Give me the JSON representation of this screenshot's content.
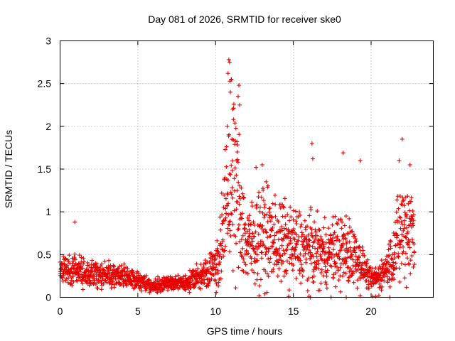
{
  "chart_data": {
    "type": "scatter",
    "title": "Day 081 of 2026, SRMTID for receiver ske0",
    "xlabel": "GPS time / hours",
    "ylabel": "SRMTID / TECUs",
    "xlim": [
      0,
      24
    ],
    "ylim": [
      0,
      3
    ],
    "x_ticks": [
      0,
      5,
      10,
      15,
      20
    ],
    "x_tick_labels": [
      "0",
      "5",
      "10",
      "15",
      "20"
    ],
    "y_ticks": [
      0,
      0.5,
      1,
      1.5,
      2,
      2.5,
      3
    ],
    "y_tick_labels": [
      "0",
      "0.5",
      "1",
      "1.5",
      "2",
      "2.5",
      "3"
    ],
    "grid": true,
    "marker": "+",
    "color": "#e60000",
    "series": [
      {
        "name": "SRMTID",
        "profile": {
          "x": [
            0,
            1,
            2,
            3,
            4,
            5,
            6,
            7,
            8,
            9,
            9.8,
            10.2,
            10.6,
            11,
            11.5,
            12,
            13,
            14,
            15,
            16,
            17,
            18,
            19,
            19.5,
            20,
            20.5,
            21,
            21.5,
            22,
            22.5,
            22.8
          ],
          "y": [
            0.32,
            0.33,
            0.27,
            0.26,
            0.26,
            0.2,
            0.12,
            0.17,
            0.16,
            0.25,
            0.35,
            0.45,
            0.9,
            1.5,
            1.1,
            0.6,
            0.75,
            0.65,
            0.6,
            0.55,
            0.5,
            0.55,
            0.5,
            0.35,
            0.2,
            0.25,
            0.35,
            0.55,
            0.8,
            0.8,
            0.75
          ]
        },
        "highlights": [
          {
            "x": 0.95,
            "y": 0.88
          },
          {
            "x": 10.85,
            "y": 2.78
          },
          {
            "x": 10.9,
            "y": 2.75
          },
          {
            "x": 10.8,
            "y": 2.62
          },
          {
            "x": 11.0,
            "y": 2.55
          },
          {
            "x": 10.95,
            "y": 2.4
          },
          {
            "x": 11.5,
            "y": 2.48
          },
          {
            "x": 11.45,
            "y": 2.35
          },
          {
            "x": 11.55,
            "y": 2.25
          },
          {
            "x": 11.1,
            "y": 2.2
          },
          {
            "x": 10.75,
            "y": 2.0
          },
          {
            "x": 11.4,
            "y": 1.7
          },
          {
            "x": 16.2,
            "y": 1.8
          },
          {
            "x": 16.25,
            "y": 1.62
          },
          {
            "x": 18.2,
            "y": 1.69
          },
          {
            "x": 19.3,
            "y": 1.6
          },
          {
            "x": 12.6,
            "y": 1.52
          },
          {
            "x": 13.0,
            "y": 1.55
          },
          {
            "x": 22.0,
            "y": 1.85
          },
          {
            "x": 21.8,
            "y": 1.6
          },
          {
            "x": 22.5,
            "y": 1.55
          },
          {
            "x": 20.5,
            "y": 0.02
          },
          {
            "x": 20.3,
            "y": 0.01
          },
          {
            "x": 20.1,
            "y": 0.01
          },
          {
            "x": 16.1,
            "y": 0.0
          },
          {
            "x": 18.4,
            "y": 0.0
          },
          {
            "x": 21.2,
            "y": 0.0
          }
        ]
      }
    ]
  }
}
